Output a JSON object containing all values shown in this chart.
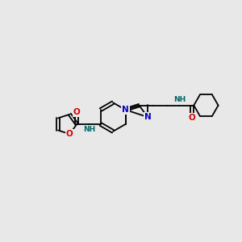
{
  "bg_color": "#e8e8e8",
  "bond_color": "#000000",
  "bond_width": 1.3,
  "atom_colors": {
    "N": "#0000cc",
    "O": "#dd0000",
    "H": "#006666",
    "C": "#000000"
  },
  "fs_main": 7.5,
  "fs_small": 6.5
}
